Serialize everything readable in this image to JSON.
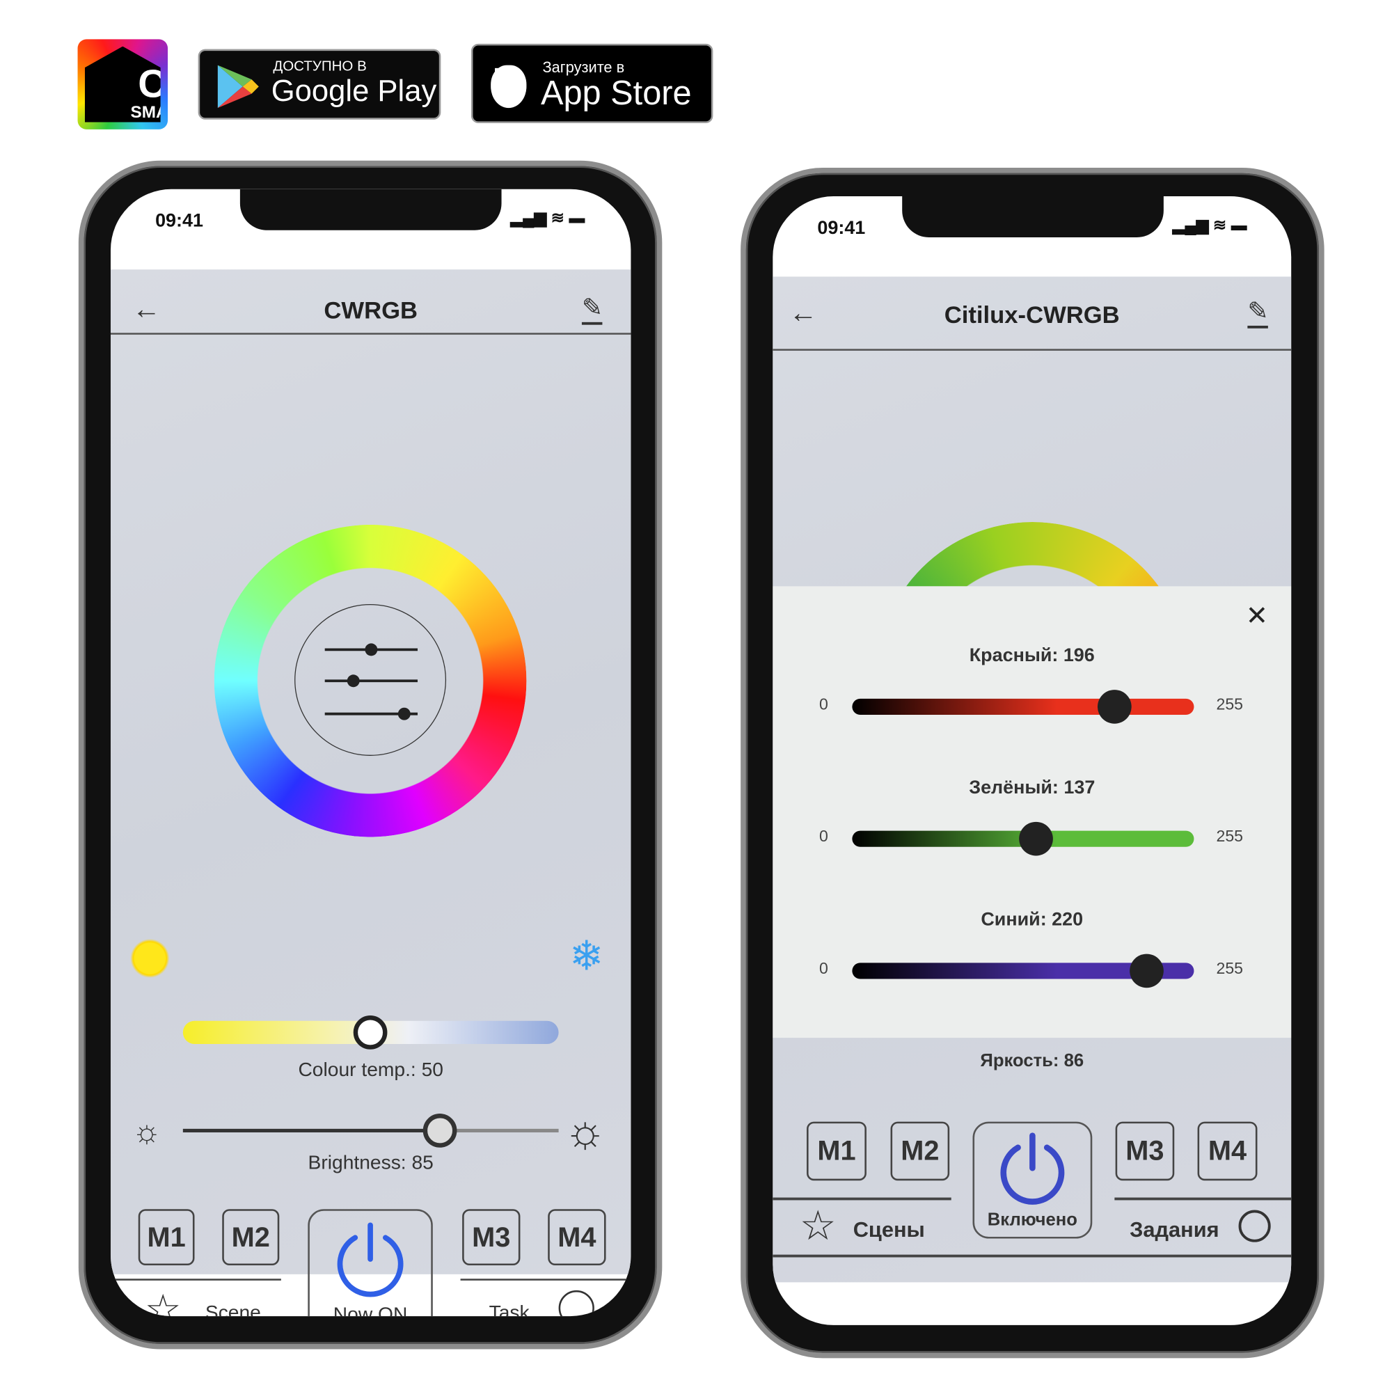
{
  "header": {
    "logo_text": "CL",
    "logo_sub": "SMART",
    "google_small": "ДОСТУПНО В",
    "google_big": "Google Play",
    "apple_small": "Загрузите в",
    "apple_big": "App Store"
  },
  "left": {
    "time": "09:41",
    "title": "CWRGB",
    "colour_temp_label": "Colour temp.: 50",
    "colour_temp": 50,
    "brightness_label": "Brightness: 85",
    "brightness": 85,
    "buttons": [
      "M1",
      "M2",
      "M3",
      "M4"
    ],
    "scene": "Scene",
    "power": "Now ON",
    "task": "Task"
  },
  "right": {
    "time": "09:41",
    "title": "Citilux-CWRGB",
    "close": "✕",
    "sliders": [
      {
        "label": "Красный: 196",
        "value": 196,
        "min": "0",
        "max": "255",
        "color": "#e8301c",
        "start": "#000"
      },
      {
        "label": "Зелёный: 137",
        "value": 137,
        "min": "0",
        "max": "255",
        "color": "#5cbc3a",
        "start": "#000"
      },
      {
        "label": "Синий: 220",
        "value": 220,
        "min": "0",
        "max": "255",
        "color": "#4a2fa8",
        "start": "#000"
      }
    ],
    "brightness_label": "Яркость: 86",
    "buttons": [
      "M1",
      "M2",
      "M3",
      "M4"
    ],
    "scene": "Сцены",
    "power": "Включено",
    "task": "Задания"
  },
  "colors": {
    "power_blue": "#2f5fe6",
    "power_blue_dark": "#3a49c7"
  }
}
